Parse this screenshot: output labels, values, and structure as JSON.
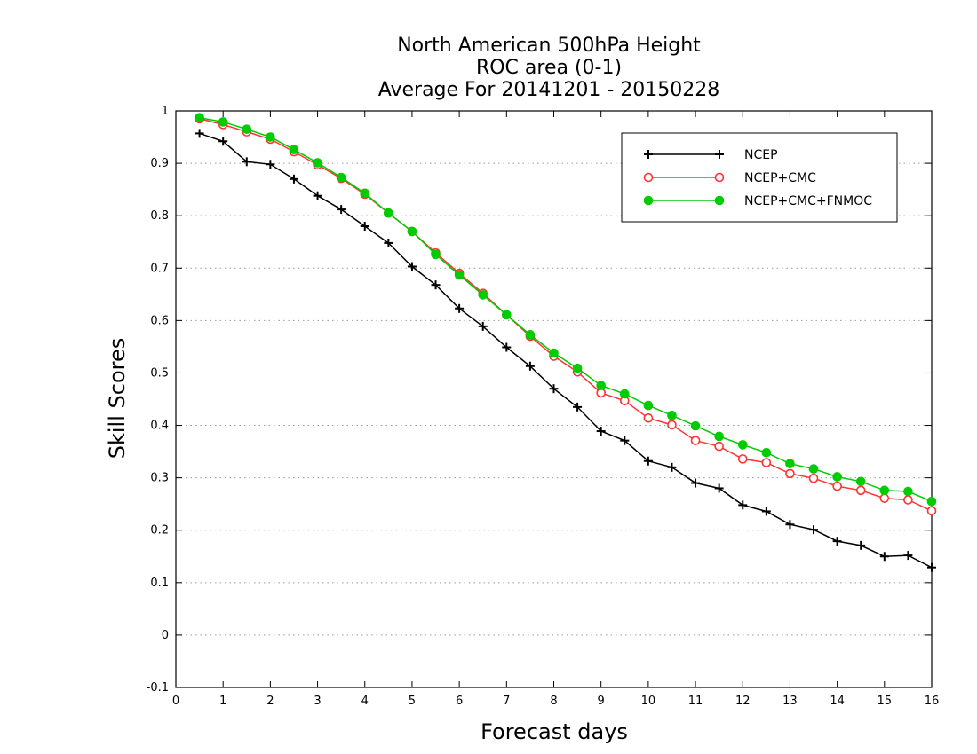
{
  "chart_data": {
    "type": "line",
    "title": [
      "North American 500hPa Height",
      "ROC area (0-1)",
      "Average For 20141201 - 20150228"
    ],
    "xlabel": "Forecast days",
    "ylabel": "Skill Scores",
    "xlim": [
      0,
      16
    ],
    "ylim": [
      -0.1,
      1
    ],
    "xticks": [
      0,
      1,
      2,
      3,
      4,
      5,
      6,
      7,
      8,
      9,
      10,
      11,
      12,
      13,
      14,
      15,
      16
    ],
    "yticks": [
      -0.1,
      0,
      0.1,
      0.2,
      0.3,
      0.4,
      0.5,
      0.6,
      0.7,
      0.8,
      0.9,
      1
    ],
    "ytick_labels": [
      "-0.1",
      "0",
      "0.1",
      "0.2",
      "0.3",
      "0.4",
      "0.5",
      "0.6",
      "0.7",
      "0.8",
      "0.9",
      "1"
    ],
    "grid": "horizontal-dotted",
    "legend_position": "top-right",
    "x": [
      0.5,
      1,
      1.5,
      2,
      2.5,
      3,
      3.5,
      4,
      4.5,
      5,
      5.5,
      6,
      6.5,
      7,
      7.5,
      8,
      8.5,
      9,
      9.5,
      10,
      10.5,
      11,
      11.5,
      12,
      12.5,
      13,
      13.5,
      14,
      14.5,
      15,
      15.5,
      16
    ],
    "series": [
      {
        "name": "NCEP",
        "color": "#000000",
        "marker": "plus",
        "values": [
          0.957,
          0.942,
          0.903,
          0.898,
          0.87,
          0.838,
          0.812,
          0.78,
          0.748,
          0.703,
          0.668,
          0.623,
          0.589,
          0.549,
          0.513,
          0.47,
          0.435,
          0.389,
          0.371,
          0.332,
          0.32,
          0.29,
          0.28,
          0.248,
          0.236,
          0.211,
          0.201,
          0.179,
          0.171,
          0.15,
          0.152,
          0.129
        ]
      },
      {
        "name": "NCEP+CMC",
        "color": "#ff3333",
        "marker": "open-circle",
        "values": [
          0.985,
          0.974,
          0.96,
          0.946,
          0.922,
          0.897,
          0.871,
          0.841,
          0.805,
          0.77,
          0.729,
          0.69,
          0.652,
          0.611,
          0.57,
          0.532,
          0.502,
          0.462,
          0.447,
          0.414,
          0.401,
          0.371,
          0.36,
          0.336,
          0.329,
          0.308,
          0.299,
          0.284,
          0.276,
          0.261,
          0.258,
          0.237
        ]
      },
      {
        "name": "NCEP+CMC+FNMOC",
        "color": "#00cc00",
        "marker": "filled-circle",
        "values": [
          0.987,
          0.979,
          0.965,
          0.95,
          0.926,
          0.901,
          0.873,
          0.843,
          0.805,
          0.77,
          0.726,
          0.687,
          0.649,
          0.611,
          0.573,
          0.538,
          0.509,
          0.476,
          0.46,
          0.438,
          0.419,
          0.399,
          0.379,
          0.363,
          0.348,
          0.327,
          0.317,
          0.302,
          0.293,
          0.276,
          0.274,
          0.255
        ]
      }
    ]
  }
}
